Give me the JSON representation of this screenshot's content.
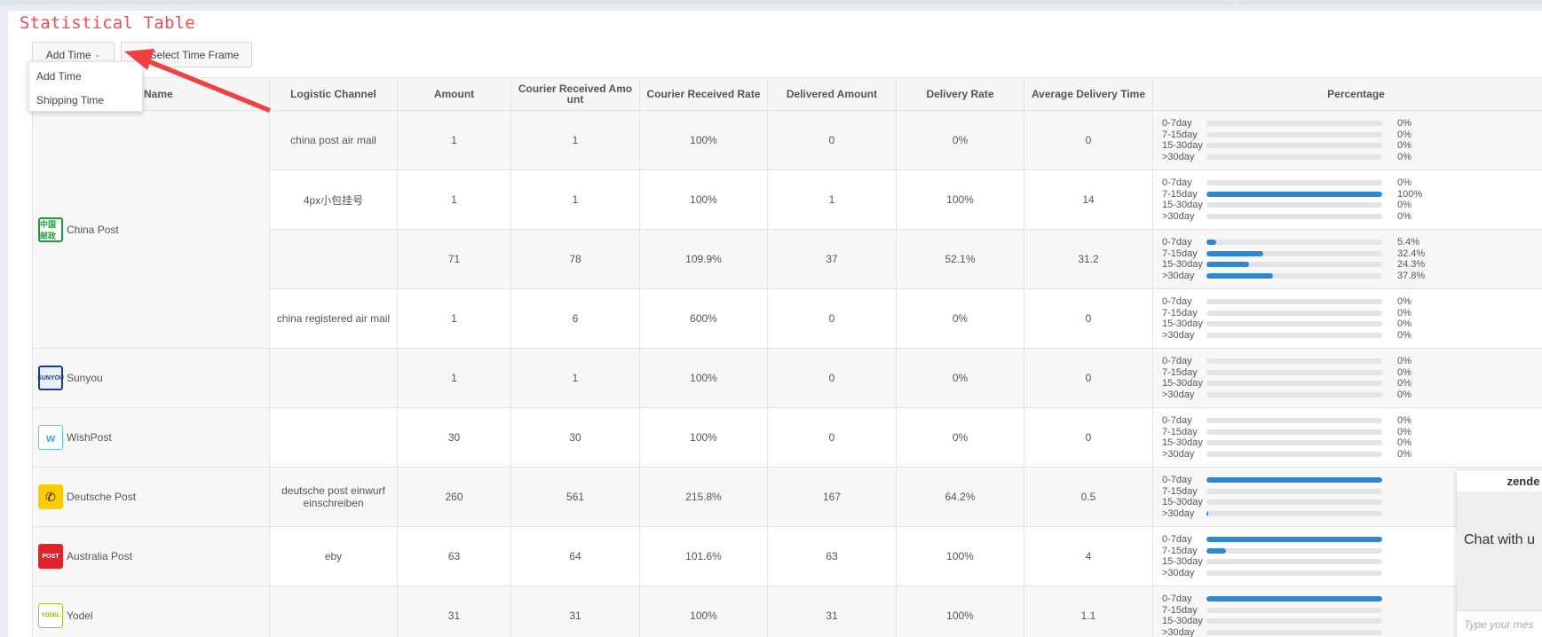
{
  "title": "Statistical Table",
  "buttons": {
    "add_time": "Add Time",
    "select_time_frame": "Select Time Frame"
  },
  "dropdown": {
    "items": [
      "Add Time",
      "Shipping Time"
    ]
  },
  "columns": [
    "Name",
    "Logistic Channel",
    "Amount",
    "Courier Received Amount",
    "Courier Received Rate",
    "Delivered Amount",
    "Delivery Rate",
    "Average Delivery Time",
    "Percentage"
  ],
  "pct_labels": [
    "0-7day",
    "7-15day",
    "15-30day",
    ">30day"
  ],
  "couriers": [
    {
      "name": "China Post",
      "logo": "china-post-icon",
      "logo_text": "中国邮政",
      "rowspan": 4
    },
    {
      "name": "Sunyou",
      "logo": "sunyou-icon",
      "logo_text": "SUNYOU",
      "rowspan": 1
    },
    {
      "name": "WishPost",
      "logo": "wishpost-icon",
      "logo_text": "w",
      "rowspan": 1
    },
    {
      "name": "Deutsche Post",
      "logo": "deutsche-post-icon",
      "logo_text": "✆",
      "rowspan": 1
    },
    {
      "name": "Australia Post",
      "logo": "australia-post-icon",
      "logo_text": "POST",
      "rowspan": 1
    },
    {
      "name": "Yodel",
      "logo": "yodel-icon",
      "logo_text": "YODEL",
      "rowspan": 1
    }
  ],
  "rows": [
    {
      "channel": "china post air mail",
      "amount": "1",
      "courier_received": "1",
      "received_rate": "100%",
      "delivered": "0",
      "delivery_rate": "0%",
      "avg_time": "0",
      "pct": [
        0,
        0,
        0,
        0
      ],
      "pct_text": [
        "0%",
        "0%",
        "0%",
        "0%"
      ]
    },
    {
      "channel": "4px小包挂号",
      "amount": "1",
      "courier_received": "1",
      "received_rate": "100%",
      "delivered": "1",
      "delivery_rate": "100%",
      "avg_time": "14",
      "pct": [
        0,
        100,
        0,
        0
      ],
      "pct_text": [
        "0%",
        "100%",
        "0%",
        "0%"
      ]
    },
    {
      "channel": "",
      "amount": "71",
      "courier_received": "78",
      "received_rate": "109.9%",
      "delivered": "37",
      "delivery_rate": "52.1%",
      "avg_time": "31.2",
      "pct": [
        5.4,
        32.4,
        24.3,
        37.8
      ],
      "pct_text": [
        "5.4%",
        "32.4%",
        "24.3%",
        "37.8%"
      ]
    },
    {
      "channel": "china registered air mail",
      "amount": "1",
      "courier_received": "6",
      "received_rate": "600%",
      "delivered": "0",
      "delivery_rate": "0%",
      "avg_time": "0",
      "pct": [
        0,
        0,
        0,
        0
      ],
      "pct_text": [
        "0%",
        "0%",
        "0%",
        "0%"
      ]
    },
    {
      "channel": "",
      "amount": "1",
      "courier_received": "1",
      "received_rate": "100%",
      "delivered": "0",
      "delivery_rate": "0%",
      "avg_time": "0",
      "pct": [
        0,
        0,
        0,
        0
      ],
      "pct_text": [
        "0%",
        "0%",
        "0%",
        "0%"
      ]
    },
    {
      "channel": "",
      "amount": "30",
      "courier_received": "30",
      "received_rate": "100%",
      "delivered": "0",
      "delivery_rate": "0%",
      "avg_time": "0",
      "pct": [
        0,
        0,
        0,
        0
      ],
      "pct_text": [
        "0%",
        "0%",
        "0%",
        "0%"
      ]
    },
    {
      "channel": "deutsche post einwurf einschreiben",
      "amount": "260",
      "courier_received": "561",
      "received_rate": "215.8%",
      "delivered": "167",
      "delivery_rate": "64.2%",
      "avg_time": "0.5",
      "pct": [
        100,
        0,
        0,
        1
      ],
      "pct_text": [
        "",
        "",
        "",
        ""
      ]
    },
    {
      "channel": "eby",
      "amount": "63",
      "courier_received": "64",
      "received_rate": "101.6%",
      "delivered": "63",
      "delivery_rate": "100%",
      "avg_time": "4",
      "pct": [
        100,
        11,
        0,
        0
      ],
      "pct_text": [
        "",
        "",
        "",
        ""
      ]
    },
    {
      "channel": "",
      "amount": "31",
      "courier_received": "31",
      "received_rate": "100%",
      "delivered": "31",
      "delivery_rate": "100%",
      "avg_time": "1.1",
      "pct": [
        100,
        0,
        0,
        0
      ],
      "pct_text": [
        "",
        "",
        "",
        ""
      ]
    }
  ],
  "zendesk": {
    "title": "zende",
    "chat": "Chat with u",
    "placeholder": "Type your mes"
  },
  "colors": {
    "title": "#f04e4e",
    "bar_fill": "#2e87d1",
    "bar_track": "#e4e4e4",
    "arrow": "#f04040"
  }
}
